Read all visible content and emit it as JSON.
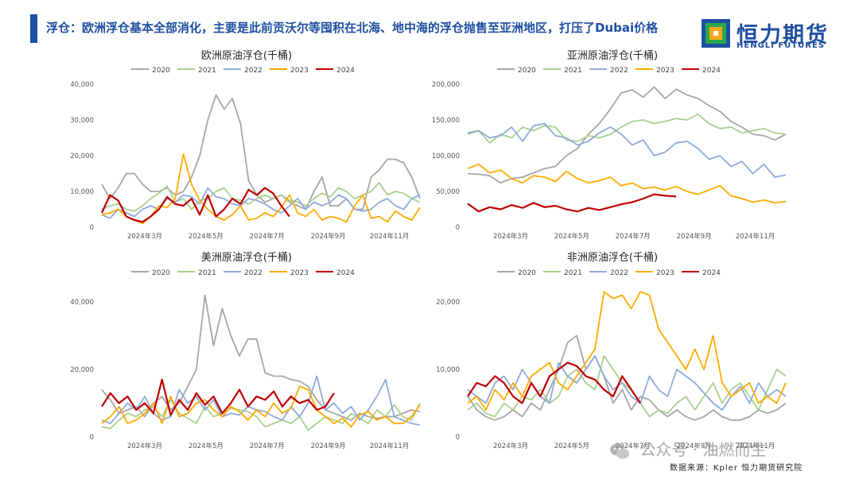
{
  "headline": "浮仓：欧洲浮仓基本全部消化，主要是此前贡沃尔等囤积在北海、地中海的浮仓抛售至亚洲地区，打压了Dubai价格",
  "logo": {
    "cn": "恒力期货",
    "en": "HENGLI FUTURES"
  },
  "source": "数据来源：Kpler 恒力期货研究院",
  "watermark": "公众号 · 油燃而生",
  "colors": {
    "accent": "#1f4fa0",
    "s2020": "#a6a6a6",
    "s2021": "#a9d18e",
    "s2022": "#8faadc",
    "s2023": "#ffaa00",
    "s2024": "#c00000"
  },
  "chart_data": [
    {
      "type": "line",
      "title": "欧洲原油浮仓(千桶)",
      "xlabel": "",
      "ylabel": "",
      "ylim": [
        0,
        40000
      ],
      "yticks": [
        "0",
        "10,000",
        "20,000",
        "30,000",
        "40,000"
      ],
      "xticks": [
        "2024年3月",
        "2024年5月",
        "2024年7月",
        "2024年9月",
        "2024年11月"
      ],
      "legend": "top-center",
      "grid": false,
      "series": [
        {
          "name": "2020",
          "color": "#a6a6a6",
          "values": [
            12000,
            8000,
            11000,
            15000,
            15000,
            12000,
            10000,
            10000,
            11000,
            9000,
            10000,
            14000,
            20000,
            30000,
            37000,
            33000,
            36000,
            29000,
            13000,
            9000,
            7000,
            8000,
            9000,
            7000,
            6000,
            5000,
            10000,
            14000,
            6000,
            6000,
            8000,
            5000,
            5000,
            14000,
            16000,
            19000,
            19000,
            18000,
            14000,
            8000
          ]
        },
        {
          "name": "2021",
          "color": "#a9d18e",
          "values": [
            5000,
            6000,
            6500,
            5000,
            4500,
            6000,
            8000,
            9500,
            11500,
            7000,
            8000,
            5000,
            7500,
            8000,
            10000,
            11000,
            8000,
            7500,
            6500,
            8000,
            9000,
            8000,
            9000,
            7500,
            7000,
            6000,
            8000,
            9500,
            8500,
            11000,
            10000,
            8000,
            9000,
            10000,
            12500,
            9000,
            10000,
            9500,
            8000,
            7000
          ]
        },
        {
          "name": "2022",
          "color": "#8faadc",
          "values": [
            3500,
            2500,
            5000,
            4000,
            3000,
            5000,
            6000,
            5000,
            8000,
            7000,
            9000,
            8500,
            6500,
            11000,
            8500,
            8000,
            6500,
            6000,
            8000,
            7500,
            6500,
            5000,
            4000,
            6000,
            8000,
            5000,
            7000,
            6000,
            7000,
            9000,
            8000,
            5000,
            4500,
            5000,
            7000,
            8000,
            6000,
            5000,
            8000,
            9000
          ]
        },
        {
          "name": "2023",
          "color": "#ffaa00",
          "values": [
            3500,
            4000,
            5000,
            3000,
            2000,
            1000,
            3000,
            6000,
            5500,
            8000,
            20500,
            12000,
            7500,
            5000,
            3000,
            2000,
            3500,
            6000,
            2000,
            2500,
            4000,
            3000,
            5500,
            9000,
            4000,
            3000,
            5000,
            2000,
            3000,
            2500,
            1500,
            6000,
            9000,
            2500,
            3000,
            1500,
            4500,
            3000,
            2000,
            5500
          ]
        },
        {
          "name": "2024",
          "color": "#c00000",
          "values": [
            4000,
            9000,
            7500,
            3000,
            2000,
            1500,
            3000,
            5000,
            8500,
            6500,
            6000,
            8000,
            3500,
            9000,
            3000,
            5000,
            8000,
            6500,
            10500,
            9000,
            11000,
            9500,
            6000,
            3000
          ]
        }
      ]
    },
    {
      "type": "line",
      "title": "亚洲原油浮仓(千桶)",
      "xlabel": "",
      "ylabel": "",
      "ylim": [
        0,
        200000
      ],
      "yticks": [
        "0",
        "50,000",
        "100,000",
        "150,000",
        "200,000"
      ],
      "xticks": [
        "2024年3月",
        "2024年5月",
        "2024年7月",
        "2024年9月",
        "2024年11月"
      ],
      "legend": "top-center",
      "grid": false,
      "series": [
        {
          "name": "2020",
          "color": "#a6a6a6",
          "values": [
            75000,
            74000,
            72000,
            62000,
            68000,
            70000,
            76000,
            82000,
            85000,
            100000,
            110000,
            130000,
            145000,
            165000,
            188000,
            192000,
            182000,
            196000,
            180000,
            193000,
            185000,
            180000,
            170000,
            162000,
            148000,
            140000,
            130000,
            128000,
            122000,
            130000
          ]
        },
        {
          "name": "2021",
          "color": "#a9d18e",
          "values": [
            130000,
            135000,
            118000,
            130000,
            125000,
            140000,
            135000,
            142000,
            140000,
            122000,
            120000,
            128000,
            125000,
            130000,
            140000,
            148000,
            150000,
            145000,
            148000,
            152000,
            150000,
            158000,
            145000,
            138000,
            140000,
            132000,
            135000,
            138000,
            132000,
            130000
          ]
        },
        {
          "name": "2022",
          "color": "#8faadc",
          "values": [
            132000,
            135000,
            125000,
            128000,
            140000,
            120000,
            142000,
            145000,
            128000,
            125000,
            115000,
            120000,
            132000,
            140000,
            130000,
            115000,
            122000,
            100000,
            105000,
            118000,
            120000,
            110000,
            95000,
            100000,
            85000,
            92000,
            75000,
            88000,
            70000,
            73000
          ]
        },
        {
          "name": "2023",
          "color": "#ffaa00",
          "values": [
            82000,
            88000,
            76000,
            80000,
            68000,
            62000,
            72000,
            70000,
            64000,
            78000,
            68000,
            62000,
            65000,
            70000,
            58000,
            62000,
            54000,
            56000,
            52000,
            57000,
            50000,
            46000,
            52000,
            58000,
            44000,
            40000,
            35000,
            38000,
            34000,
            36000
          ]
        },
        {
          "name": "2024",
          "color": "#c00000",
          "values": [
            33000,
            22000,
            28000,
            25000,
            31000,
            27000,
            34000,
            28000,
            30000,
            25000,
            22000,
            27000,
            24000,
            28000,
            32000,
            35000,
            40000,
            46000,
            44000,
            43000
          ]
        }
      ]
    },
    {
      "type": "line",
      "title": "美洲原油浮仓(千桶)",
      "xlabel": "",
      "ylabel": "",
      "ylim": [
        0,
        40000
      ],
      "yticks": [
        "0",
        "20,000",
        "40,000"
      ],
      "xticks": [
        "2024年3月",
        "2024年5月",
        "2024年7月",
        "2024年9月",
        "2024年11月"
      ],
      "legend": "top-center",
      "grid": false,
      "series": [
        {
          "name": "2020",
          "color": "#a6a6a6",
          "values": [
            14000,
            11000,
            7000,
            8000,
            9000,
            6000,
            10000,
            12000,
            8000,
            10000,
            15000,
            20000,
            42000,
            27000,
            38000,
            30000,
            24000,
            29000,
            29000,
            19000,
            18000,
            18000,
            17000,
            16500,
            15000,
            11000,
            8000,
            7000,
            6000,
            5000,
            7000,
            6000,
            5500,
            6000,
            6000,
            7000,
            8000,
            7500
          ]
        },
        {
          "name": "2021",
          "color": "#a9d18e",
          "values": [
            3000,
            2500,
            5000,
            7000,
            6000,
            8000,
            9000,
            6000,
            11000,
            7000,
            5500,
            4000,
            9000,
            6000,
            7000,
            8500,
            8000,
            7500,
            6000,
            3000,
            4000,
            5000,
            4000,
            6000,
            2000,
            4000,
            6000,
            5000,
            4000,
            7000,
            5500,
            4000,
            8000,
            6000,
            9500,
            6000,
            5000,
            10000
          ]
        },
        {
          "name": "2022",
          "color": "#8faadc",
          "values": [
            5000,
            4000,
            7000,
            10000,
            8000,
            12000,
            7000,
            5000,
            6000,
            14000,
            10000,
            12000,
            8000,
            11000,
            6000,
            7000,
            6500,
            9000,
            8000,
            7500,
            6000,
            5000,
            9000,
            6000,
            10000,
            18000,
            8000,
            10000,
            7000,
            9000,
            5000,
            8000,
            12000,
            17000,
            6000,
            5000,
            4000,
            3500
          ]
        },
        {
          "name": "2023",
          "color": "#ffaa00",
          "values": [
            4000,
            6000,
            9000,
            4000,
            5000,
            7000,
            10000,
            4000,
            12000,
            6000,
            7000,
            10000,
            11000,
            8000,
            6000,
            9000,
            7500,
            5000,
            8000,
            6000,
            10000,
            7000,
            8500,
            15000,
            14000,
            8000,
            6000,
            4000,
            5500,
            3000,
            6500,
            7500,
            5000,
            6000,
            4000,
            4000,
            6000,
            9500
          ]
        },
        {
          "name": "2024",
          "color": "#c00000",
          "values": [
            9000,
            13000,
            10000,
            12000,
            8000,
            10000,
            7000,
            17000,
            6500,
            11000,
            8000,
            13000,
            9500,
            12000,
            7000,
            10000,
            14000,
            9000,
            12000,
            11000,
            13500,
            9000,
            12000,
            10000,
            11000,
            8000,
            9000,
            13000
          ]
        }
      ]
    },
    {
      "type": "line",
      "title": "非洲原油浮仓(千桶)",
      "xlabel": "",
      "ylabel": "",
      "ylim": [
        0,
        20000
      ],
      "yticks": [
        "0",
        "10,000",
        "20,000"
      ],
      "xticks": [
        "2024年3月",
        "2024年5月",
        "2024年7月",
        "2024年9月",
        "2024年11月"
      ],
      "legend": "top-center",
      "grid": false,
      "series": [
        {
          "name": "2020",
          "color": "#a6a6a6",
          "values": [
            6000,
            4000,
            3000,
            2500,
            3000,
            4000,
            3000,
            5000,
            4000,
            7000,
            10000,
            14000,
            15000,
            10000,
            12000,
            9000,
            5000,
            7000,
            4000,
            6000,
            5500,
            4000,
            3000,
            4000,
            3000,
            2500,
            3000,
            4000,
            3000,
            2500,
            2500,
            3000,
            4000,
            3500,
            4000,
            5000
          ]
        },
        {
          "name": "2021",
          "color": "#a9d18e",
          "values": [
            4000,
            5000,
            3500,
            3000,
            5000,
            4000,
            6000,
            5500,
            7000,
            5000,
            6000,
            9000,
            10000,
            8000,
            7000,
            12000,
            10000,
            8000,
            7000,
            5000,
            3000,
            4000,
            3500,
            5000,
            6000,
            4000,
            6000,
            8000,
            5000,
            7000,
            8000,
            6000,
            4000,
            7000,
            10000,
            9000
          ]
        },
        {
          "name": "2022",
          "color": "#8faadc",
          "values": [
            7000,
            6000,
            5000,
            8000,
            9000,
            7000,
            10000,
            8000,
            6000,
            5000,
            11000,
            9000,
            8000,
            10000,
            12000,
            9000,
            7000,
            8000,
            6000,
            5000,
            9000,
            7000,
            6000,
            10000,
            9000,
            8000,
            6500,
            5000,
            4000,
            6000,
            7500,
            5000,
            8000,
            6000,
            7000,
            6000
          ]
        },
        {
          "name": "2023",
          "color": "#ffaa00",
          "values": [
            5000,
            6000,
            4000,
            7000,
            5500,
            8000,
            6000,
            9000,
            10000,
            11000,
            8000,
            7000,
            9000,
            11000,
            13000,
            21500,
            20500,
            21000,
            19000,
            21500,
            21000,
            16000,
            14000,
            12000,
            10000,
            13000,
            10000,
            15000,
            8000,
            6000,
            7000,
            8000,
            5000,
            6000,
            5000,
            8000
          ]
        },
        {
          "name": "2024",
          "color": "#c00000",
          "values": [
            6000,
            8000,
            7500,
            9000,
            8000,
            6000,
            5000,
            8000,
            6000,
            9000,
            10000,
            11000,
            10500,
            9000,
            8500,
            7000,
            6000,
            9000,
            7000,
            5000
          ]
        }
      ]
    }
  ]
}
